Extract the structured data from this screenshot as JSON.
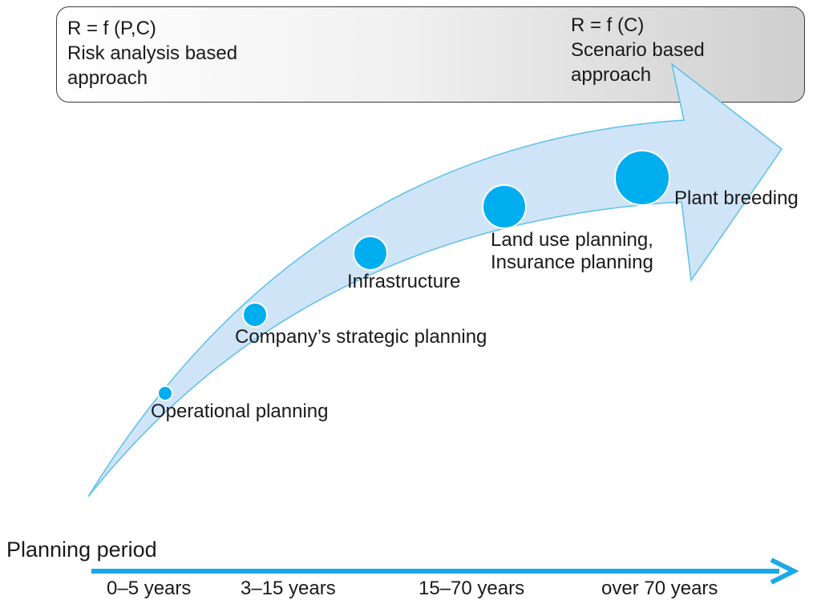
{
  "banner": {
    "left": {
      "formula": "R = f (P,C)",
      "line1": "Risk analysis based",
      "line2": "approach"
    },
    "right": {
      "formula": "R = f (C)",
      "line1": "Scenario based",
      "line2": "approach"
    }
  },
  "stages": [
    {
      "label": "Operational planning"
    },
    {
      "label": "Company’s strategic planning"
    },
    {
      "label": "Infrastructure"
    },
    {
      "label_line1": "Land use planning,",
      "label_line2": "Insurance planning"
    },
    {
      "label": "Plant breeding"
    }
  ],
  "timeline": {
    "title": "Planning period",
    "ticks": [
      "0–5 years",
      "3–15 years",
      "15–70 years",
      "over 70 years"
    ]
  },
  "colors": {
    "arrow_fill": "#cfe4f7",
    "arrow_stroke": "#5bc0ea",
    "dot": "#00aeef",
    "timeline": "#1aa9e8"
  }
}
